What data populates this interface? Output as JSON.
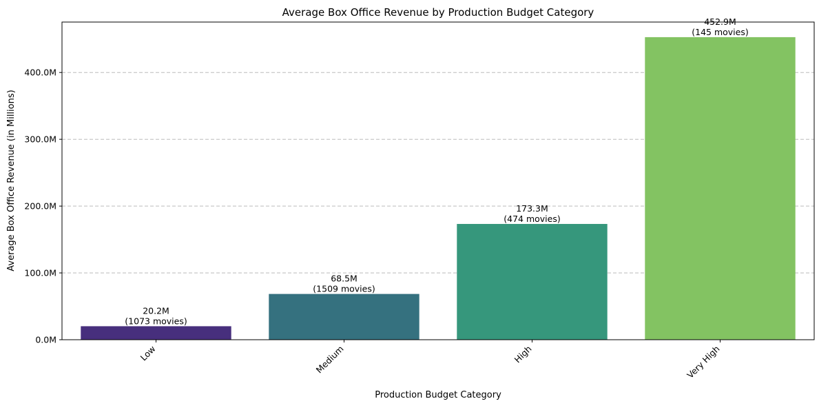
{
  "chart_data": {
    "type": "bar",
    "title": "Average Box Office Revenue by Production Budget Category",
    "xlabel": "Production Budget Category",
    "ylabel": "Average Box Office Revenue (in Millions)",
    "categories": [
      "Low",
      "Medium",
      "High",
      "Very High"
    ],
    "values": [
      20.2,
      68.5,
      173.3,
      452.9
    ],
    "value_labels": [
      "20.2M",
      "68.5M",
      "173.3M",
      "452.9M"
    ],
    "count_labels": [
      "(1073 movies)",
      "(1509 movies)",
      "(474 movies)",
      "(145 movies)"
    ],
    "colors": [
      "#472f7d",
      "#35717f",
      "#36977c",
      "#83c362"
    ],
    "yticks": [
      0,
      100,
      200,
      300,
      400
    ],
    "ytick_labels": [
      "0.0M",
      "100.0M",
      "200.0M",
      "300.0M",
      "400.0M"
    ],
    "ylim": [
      0,
      475.5
    ],
    "grid": "y-dashed",
    "legend": "none",
    "xtick_rotation": 45
  }
}
